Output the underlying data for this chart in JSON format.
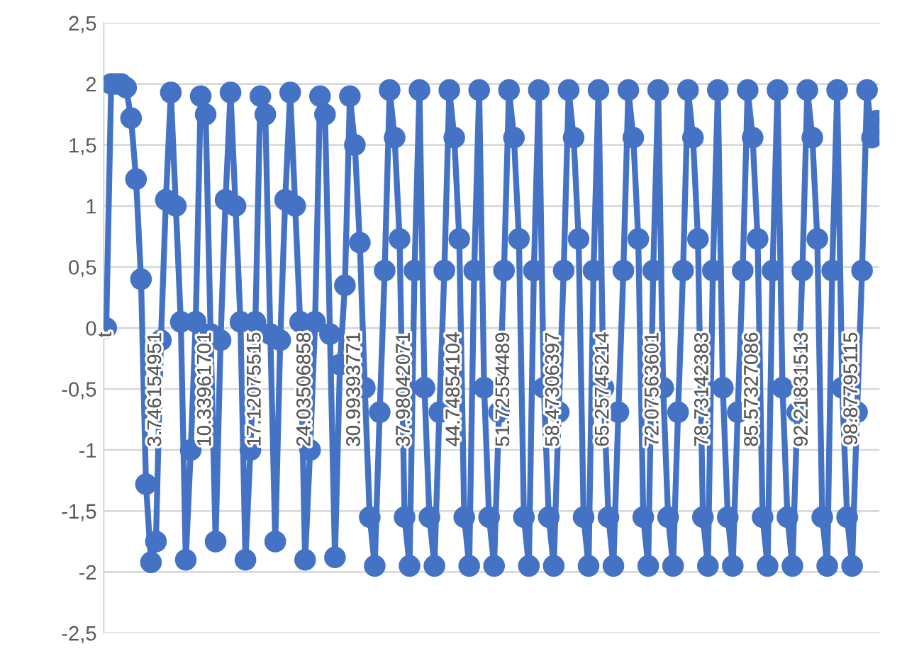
{
  "chart_data": {
    "type": "line",
    "categories": [
      "t",
      null,
      null,
      null,
      null,
      null,
      null,
      null,
      null,
      null,
      "3.746154951",
      null,
      null,
      null,
      null,
      null,
      null,
      null,
      null,
      null,
      "10.33961701",
      null,
      null,
      null,
      null,
      null,
      null,
      null,
      null,
      null,
      "17.12075515",
      null,
      null,
      null,
      null,
      null,
      null,
      null,
      null,
      null,
      "24.03506858",
      null,
      null,
      null,
      null,
      null,
      null,
      null,
      null,
      null,
      "30.99393771",
      null,
      null,
      null,
      null,
      null,
      null,
      null,
      null,
      null,
      "37.98042071",
      null,
      null,
      null,
      null,
      null,
      null,
      null,
      null,
      null,
      "44.74854104",
      null,
      null,
      null,
      null,
      null,
      null,
      null,
      null,
      null,
      "51.72554489",
      null,
      null,
      null,
      null,
      null,
      null,
      null,
      null,
      null,
      "58.47306397",
      null,
      null,
      null,
      null,
      null,
      null,
      null,
      null,
      null,
      "65.25745214",
      null,
      null,
      null,
      null,
      null,
      null,
      null,
      null,
      null,
      "72.07563601",
      null,
      null,
      null,
      null,
      null,
      null,
      null,
      null,
      null,
      "78.73142383",
      null,
      null,
      null,
      null,
      null,
      null,
      null,
      null,
      null,
      "85.57327086",
      null,
      null,
      null,
      null,
      null,
      null,
      null,
      null,
      null,
      "92.21831513",
      null,
      null,
      null,
      null,
      null,
      null,
      null,
      null,
      null,
      "98.87795115",
      null,
      null,
      null,
      null,
      null
    ],
    "series": [
      {
        "color": "#4472c4",
        "values": [
          0,
          2,
          2,
          2,
          1.97,
          1.72,
          1.22,
          0.4,
          -1.28,
          -1.92,
          -1.75,
          -0.1,
          1.05,
          1.93,
          1.0,
          0.05,
          -1.9,
          -1.0,
          0.05,
          1.9,
          1.75,
          -0.05,
          -1.75,
          -0.1,
          1.05,
          1.93,
          1.0,
          0.05,
          -1.9,
          -1.0,
          0.05,
          1.9,
          1.75,
          -0.05,
          -1.75,
          -0.1,
          1.05,
          1.93,
          1.0,
          0.05,
          -1.9,
          -1.0,
          0.05,
          1.9,
          1.75,
          -0.05,
          -1.88,
          -0.3,
          0.35,
          1.9,
          1.5,
          0.7,
          -0.49,
          -1.55,
          -1.95,
          -0.69,
          0.47,
          1.95,
          1.56,
          0.73,
          -1.55,
          -1.95,
          0.47,
          1.95,
          -0.49,
          -1.55,
          -1.95,
          -0.69,
          0.47,
          1.95,
          1.56,
          0.73,
          -1.55,
          -1.95,
          0.47,
          1.95,
          -0.49,
          -1.55,
          -1.95,
          -0.69,
          0.47,
          1.95,
          1.56,
          0.73,
          -1.55,
          -1.95,
          0.47,
          1.95,
          -0.49,
          -1.55,
          -1.95,
          -0.69,
          0.47,
          1.95,
          1.56,
          0.73,
          -1.55,
          -1.95,
          0.47,
          1.95,
          -0.49,
          -1.55,
          -1.95,
          -0.69,
          0.47,
          1.95,
          1.56,
          0.73,
          -1.55,
          -1.95,
          0.47,
          1.95,
          -0.49,
          -1.55,
          -1.95,
          -0.69,
          0.47,
          1.95,
          1.56,
          0.73,
          -1.55,
          -1.95,
          0.47,
          1.95,
          -0.49,
          -1.55,
          -1.95,
          -0.69,
          0.47,
          1.95,
          1.56,
          0.73,
          -1.55,
          -1.95,
          0.47,
          1.95,
          -0.49,
          -1.55,
          -1.95,
          -0.69,
          0.47,
          1.95,
          1.56,
          0.73,
          -1.55,
          -1.95,
          0.47,
          1.95,
          -0.49,
          -1.55,
          -1.95,
          -0.69,
          0.47,
          1.95,
          1.56,
          1.7
        ]
      }
    ],
    "ylim": [
      -2.5,
      2.5
    ],
    "yticks": [
      {
        "value": -2.5,
        "label": "-2,5"
      },
      -2,
      {
        "value": -1.5,
        "label": "-1,5"
      },
      -1,
      {
        "value": -0.5,
        "label": "-0,5"
      },
      0,
      {
        "value": 0.5,
        "label": "0,5"
      },
      1,
      {
        "value": 1.5,
        "label": "1,5"
      },
      2,
      {
        "value": 2.5,
        "label": "2,5"
      }
    ],
    "grid": "y",
    "marker": "circle",
    "line_style": "solid",
    "legend": false
  }
}
